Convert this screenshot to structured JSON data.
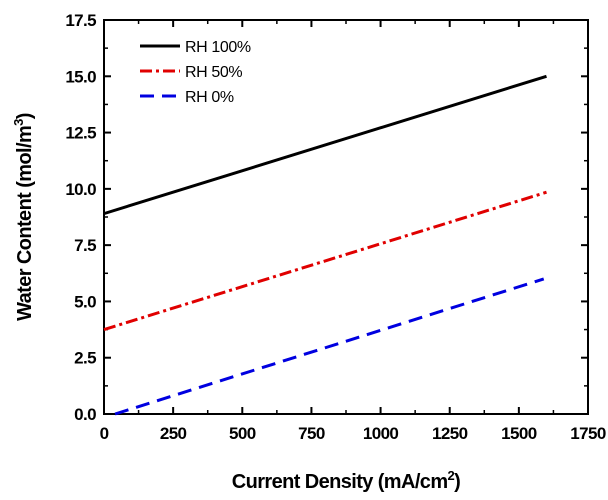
{
  "chart_data": {
    "type": "line",
    "title": "",
    "xlabel": {
      "main": "Current Density (mA/cm",
      "sup": "2",
      "tail": ")"
    },
    "ylabel": {
      "main": "Water Content (mol/m",
      "sup": "3",
      "tail": ")"
    },
    "xlim": [
      0,
      1750
    ],
    "ylim": [
      0,
      17.5
    ],
    "x_ticks": [
      0,
      250,
      500,
      750,
      1000,
      1250,
      1500,
      1750
    ],
    "x_tick_labels": [
      "0",
      "250",
      "500",
      "750",
      "1000",
      "1250",
      "1500",
      "1750"
    ],
    "y_ticks": [
      0,
      2.5,
      5,
      7.5,
      10,
      12.5,
      15,
      17.5
    ],
    "y_tick_labels": [
      "0.0",
      "2.5",
      "5.0",
      "7.5",
      "10.0",
      "12.5",
      "15.0",
      "17.5"
    ],
    "grid": false,
    "legend_position": "top-left",
    "series": [
      {
        "name": "RH 100%",
        "color": "#000000",
        "dash": "solid",
        "x": [
          0,
          1600
        ],
        "y": [
          8.9,
          15.0
        ]
      },
      {
        "name": "RH 50%",
        "color": "#e00000",
        "dash": "dashdot",
        "x": [
          0,
          1600
        ],
        "y": [
          3.75,
          9.85
        ]
      },
      {
        "name": "RH 0%",
        "color": "#0000e0",
        "dash": "dash",
        "x": [
          40,
          1590
        ],
        "y": [
          0.0,
          6.0
        ]
      }
    ]
  }
}
